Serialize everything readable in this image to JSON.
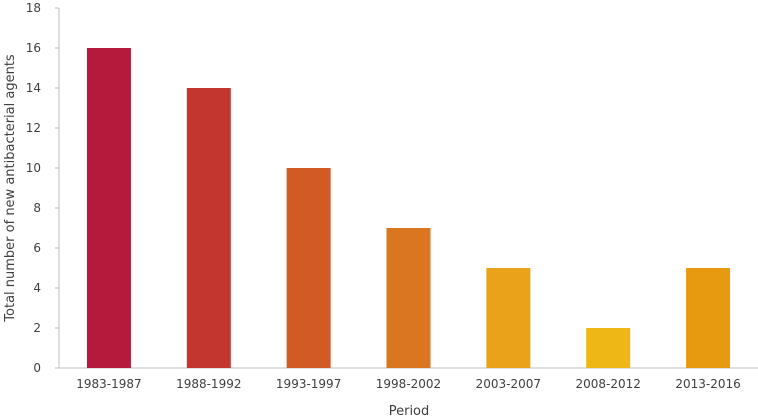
{
  "chart_data": {
    "type": "bar",
    "title": "",
    "xlabel": "Period",
    "ylabel": "Total number of new antibacterial agents",
    "categories": [
      "1983-1987",
      "1988-1992",
      "1993-1997",
      "1998-2002",
      "2003-2007",
      "2008-2012",
      "2013-2016"
    ],
    "values": [
      16,
      14,
      10,
      7,
      5,
      2,
      5
    ],
    "ylim": [
      0,
      18
    ],
    "yticks": [
      0,
      2,
      4,
      6,
      8,
      10,
      12,
      14,
      16,
      18
    ],
    "grid": false,
    "legend": "none",
    "colors": [
      "#b5193b",
      "#c3352f",
      "#d25a25",
      "#db7620",
      "#e9a21a",
      "#efb716",
      "#e79a10"
    ]
  }
}
